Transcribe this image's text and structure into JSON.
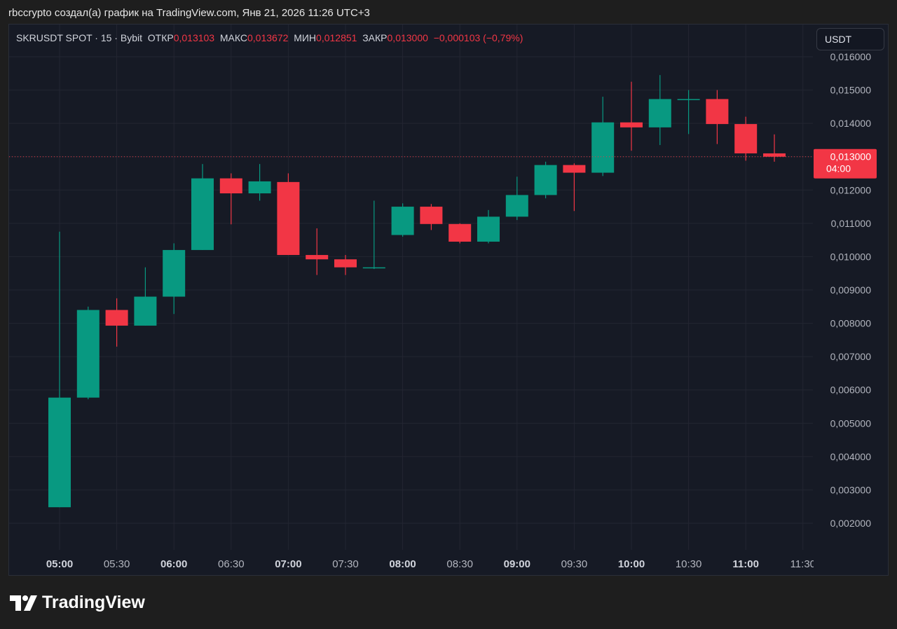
{
  "header": {
    "caption": "rbccrypto создал(а) график на TradingView.com, Янв 21, 2026 11:26 UTC+3"
  },
  "legend": {
    "symbol": "SKRUSDT SPOT · 15 · Bybit",
    "open_label": "ОТКР",
    "open_value": "0,013103",
    "high_label": "МАКС",
    "high_value": "0,013672",
    "low_label": "МИН",
    "low_value": "0,012851",
    "close_label": "ЗАКР",
    "close_value": "0,013000",
    "change": "−0,000103 (−0,79%)"
  },
  "currency_button": "USDT",
  "price_label": {
    "price": "0,013000",
    "countdown": "04:00"
  },
  "brand": {
    "name": "TradingView",
    "logo_icon": "tradingview-logo-icon"
  },
  "colors": {
    "up": "#089981",
    "down": "#f23645",
    "background": "#161a25",
    "grid": "#232632",
    "axis_text": "#b2b5be"
  },
  "chart_data": {
    "type": "candlestick",
    "x": [
      "05:00",
      "05:15",
      "05:30",
      "05:45",
      "06:00",
      "06:15",
      "06:30",
      "06:45",
      "07:00",
      "07:15",
      "07:30",
      "07:45",
      "08:00",
      "08:15",
      "08:30",
      "08:45",
      "09:00",
      "09:15",
      "09:30",
      "09:45",
      "10:00",
      "10:15",
      "10:30",
      "10:45",
      "11:00",
      "11:15"
    ],
    "open": [
      0.00248,
      0.00577,
      0.0084,
      0.00793,
      0.0088,
      0.0102,
      0.01235,
      0.0119,
      0.01224,
      0.01005,
      0.00992,
      0.00968,
      0.01065,
      0.0115,
      0.01098,
      0.01045,
      0.0112,
      0.01185,
      0.01275,
      0.01252,
      0.01403,
      0.01388,
      0.01473,
      0.01473,
      0.01398,
      0.0131
    ],
    "high": [
      0.01075,
      0.0085,
      0.00875,
      0.00968,
      0.0104,
      0.01278,
      0.0125,
      0.01278,
      0.0125,
      0.01085,
      0.01005,
      0.01168,
      0.0116,
      0.01158,
      0.011,
      0.0114,
      0.0124,
      0.01285,
      0.0128,
      0.0148,
      0.01525,
      0.01545,
      0.015,
      0.015,
      0.0142,
      0.01367
    ],
    "low": [
      0.00248,
      0.00572,
      0.0073,
      0.00793,
      0.00828,
      0.0102,
      0.01097,
      0.01168,
      0.01005,
      0.00945,
      0.00945,
      0.00963,
      0.0106,
      0.0108,
      0.0104,
      0.0104,
      0.0111,
      0.01175,
      0.01137,
      0.01242,
      0.01318,
      0.01335,
      0.01368,
      0.01338,
      0.01288,
      0.01285
    ],
    "close": [
      0.00577,
      0.0084,
      0.00793,
      0.0088,
      0.0102,
      0.01235,
      0.0119,
      0.01226,
      0.01005,
      0.00992,
      0.00968,
      0.00968,
      0.0115,
      0.01098,
      0.01045,
      0.0112,
      0.01185,
      0.01275,
      0.01252,
      0.01403,
      0.01388,
      0.01473,
      0.01473,
      0.01398,
      0.0131,
      0.013
    ],
    "y_ticks": [
      "0,016000",
      "0,015000",
      "0,014000",
      "0,013000",
      "0,012000",
      "0,011000",
      "0,010000",
      "0,009000",
      "0,008000",
      "0,007000",
      "0,006000",
      "0,005000",
      "0,004000",
      "0,003000",
      "0,002000"
    ],
    "x_ticks": [
      {
        "label": "05:00",
        "bold": true
      },
      {
        "label": "05:30",
        "bold": false
      },
      {
        "label": "06:00",
        "bold": true
      },
      {
        "label": "06:30",
        "bold": false
      },
      {
        "label": "07:00",
        "bold": true
      },
      {
        "label": "07:30",
        "bold": false
      },
      {
        "label": "08:00",
        "bold": true
      },
      {
        "label": "08:30",
        "bold": false
      },
      {
        "label": "09:00",
        "bold": true
      },
      {
        "label": "09:30",
        "bold": false
      },
      {
        "label": "10:00",
        "bold": true
      },
      {
        "label": "10:30",
        "bold": false
      },
      {
        "label": "11:00",
        "bold": true
      },
      {
        "label": "11:30",
        "bold": false
      }
    ],
    "ylim": [
      0.0013,
      0.0168
    ],
    "last_price": 0.013,
    "grid": true,
    "legend_position": "top-left"
  }
}
